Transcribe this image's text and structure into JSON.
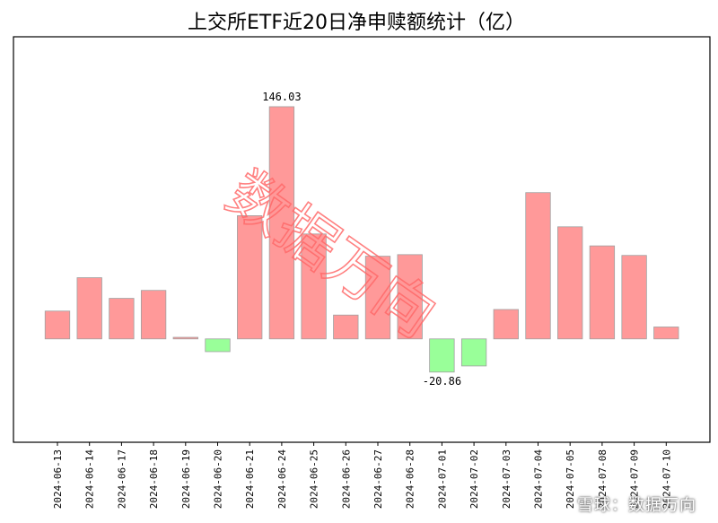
{
  "chart_data": {
    "type": "bar",
    "title": "上交所ETF近20日净申赎额统计（亿）",
    "categories": [
      "2024-06-13",
      "2024-06-14",
      "2024-06-17",
      "2024-06-18",
      "2024-06-19",
      "2024-06-20",
      "2024-06-21",
      "2024-06-24",
      "2024-06-25",
      "2024-06-26",
      "2024-06-27",
      "2024-06-28",
      "2024-07-01",
      "2024-07-02",
      "2024-07-03",
      "2024-07-04",
      "2024-07-05",
      "2024-07-08",
      "2024-07-09",
      "2024-07-10"
    ],
    "values": [
      17.5,
      38.5,
      25.5,
      30.5,
      1.0,
      -8.0,
      77.5,
      146.03,
      66.0,
      15.0,
      52.0,
      53.0,
      -20.86,
      -17.0,
      18.5,
      92.0,
      70.5,
      58.5,
      52.5,
      7.5
    ],
    "data_labels": {
      "7": "146.03",
      "12": "-20.86"
    },
    "ylim": [
      -65,
      190
    ],
    "grid": false,
    "xlabel": "",
    "ylabel": "",
    "colors": {
      "positive": "#ff9999",
      "negative": "#99ff99",
      "edge": "#a0a0a0"
    }
  },
  "watermark": {
    "text": "数据万向"
  },
  "footer_watermark": {
    "text": "雪球：数据万向"
  }
}
